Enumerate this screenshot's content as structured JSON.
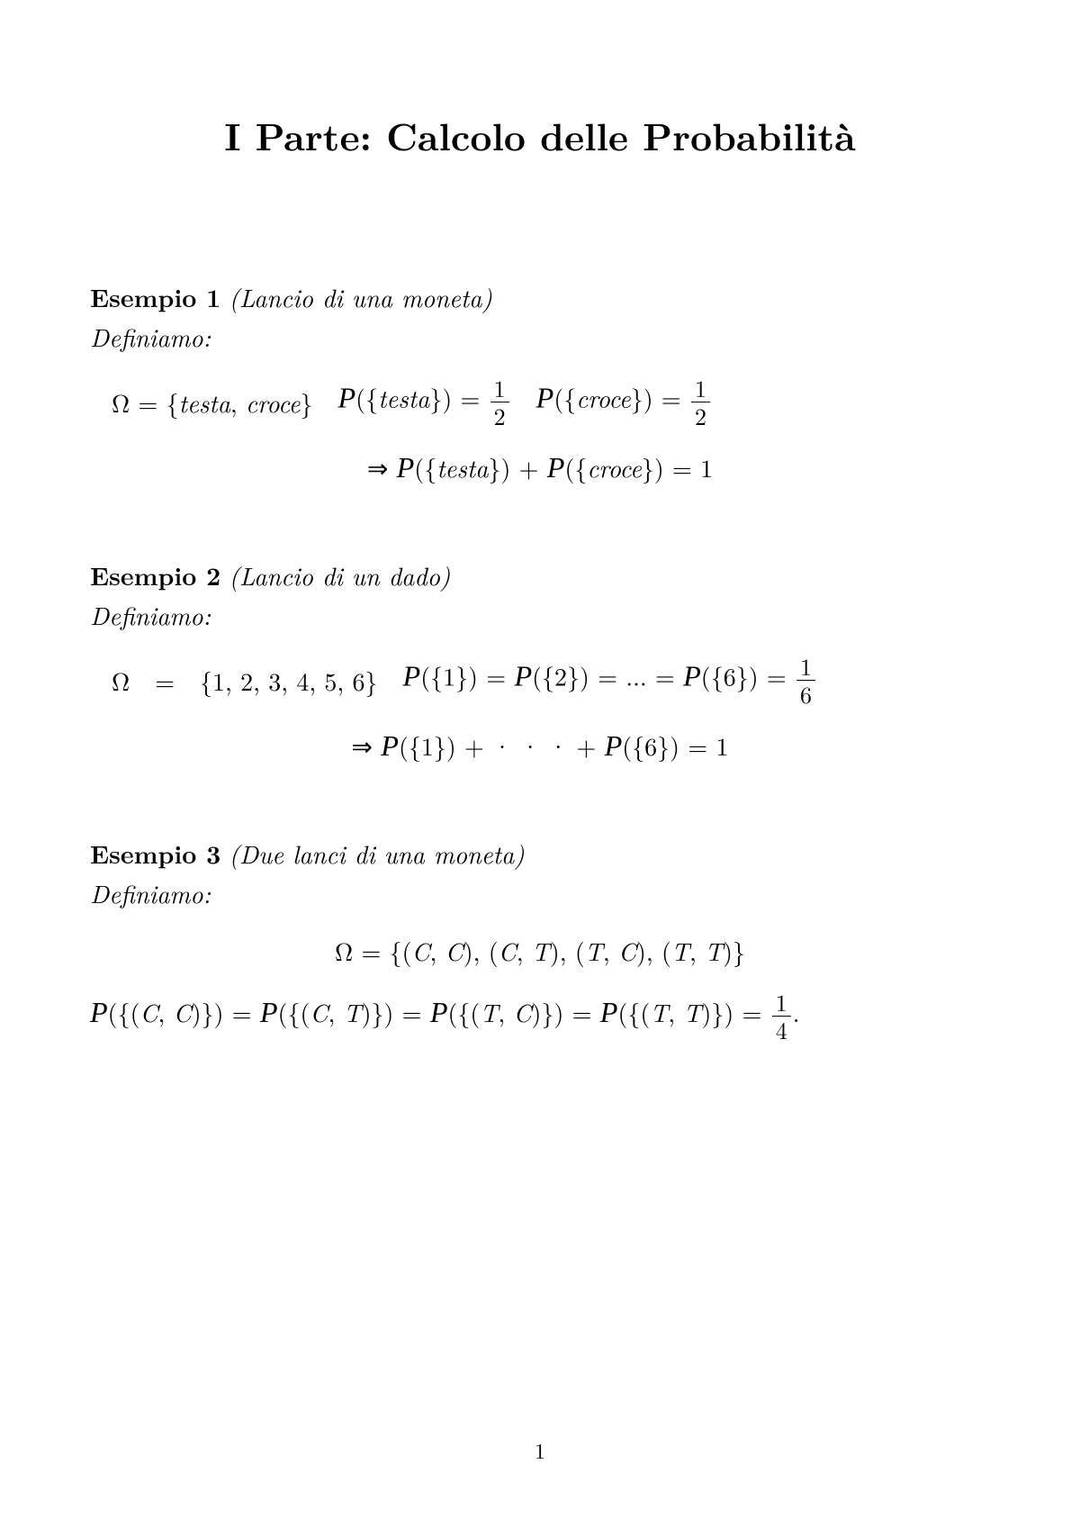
{
  "title": "I Parte: Calcolo delle Probabilità",
  "page_number": "1",
  "examples": [
    {
      "label": "Esempio 1",
      "name": "(Lancio di una moneta)",
      "lead": "Definiamo:",
      "line1_omega": "Ω = {testa, croce}",
      "line1_p1_left": "P({testa}) = ",
      "line1_p1_num": "1",
      "line1_p1_den": "2",
      "line1_p2_left": "P({croce}) = ",
      "line1_p2_num": "1",
      "line1_p2_den": "2",
      "line2": "⇒ P({testa}) + P({croce}) = 1"
    },
    {
      "label": "Esempio 2",
      "name": "(Lancio di un dado)",
      "lead": "Definiamo:",
      "line1_omega": "Ω  =  {1, 2, 3, 4, 5, 6}",
      "line1_p_chain": "P({1}) = P({2}) = ... = P({6}) = ",
      "line1_p_num": "1",
      "line1_p_den": "6",
      "line2": "⇒ P({1}) + · · · + P({6}) = 1"
    },
    {
      "label": "Esempio 3",
      "name": "(Due lanci di una moneta)",
      "lead": "Definiamo:",
      "line1": "Ω = {(C, C), (C, T), (T, C), (T, T)}",
      "line2_chain": "P({(C, C)}) = P({(C, T)}) = P({(T, C)}) = P({(T, T)}) = ",
      "line2_num": "1",
      "line2_den": "4",
      "line2_tail": "."
    }
  ]
}
